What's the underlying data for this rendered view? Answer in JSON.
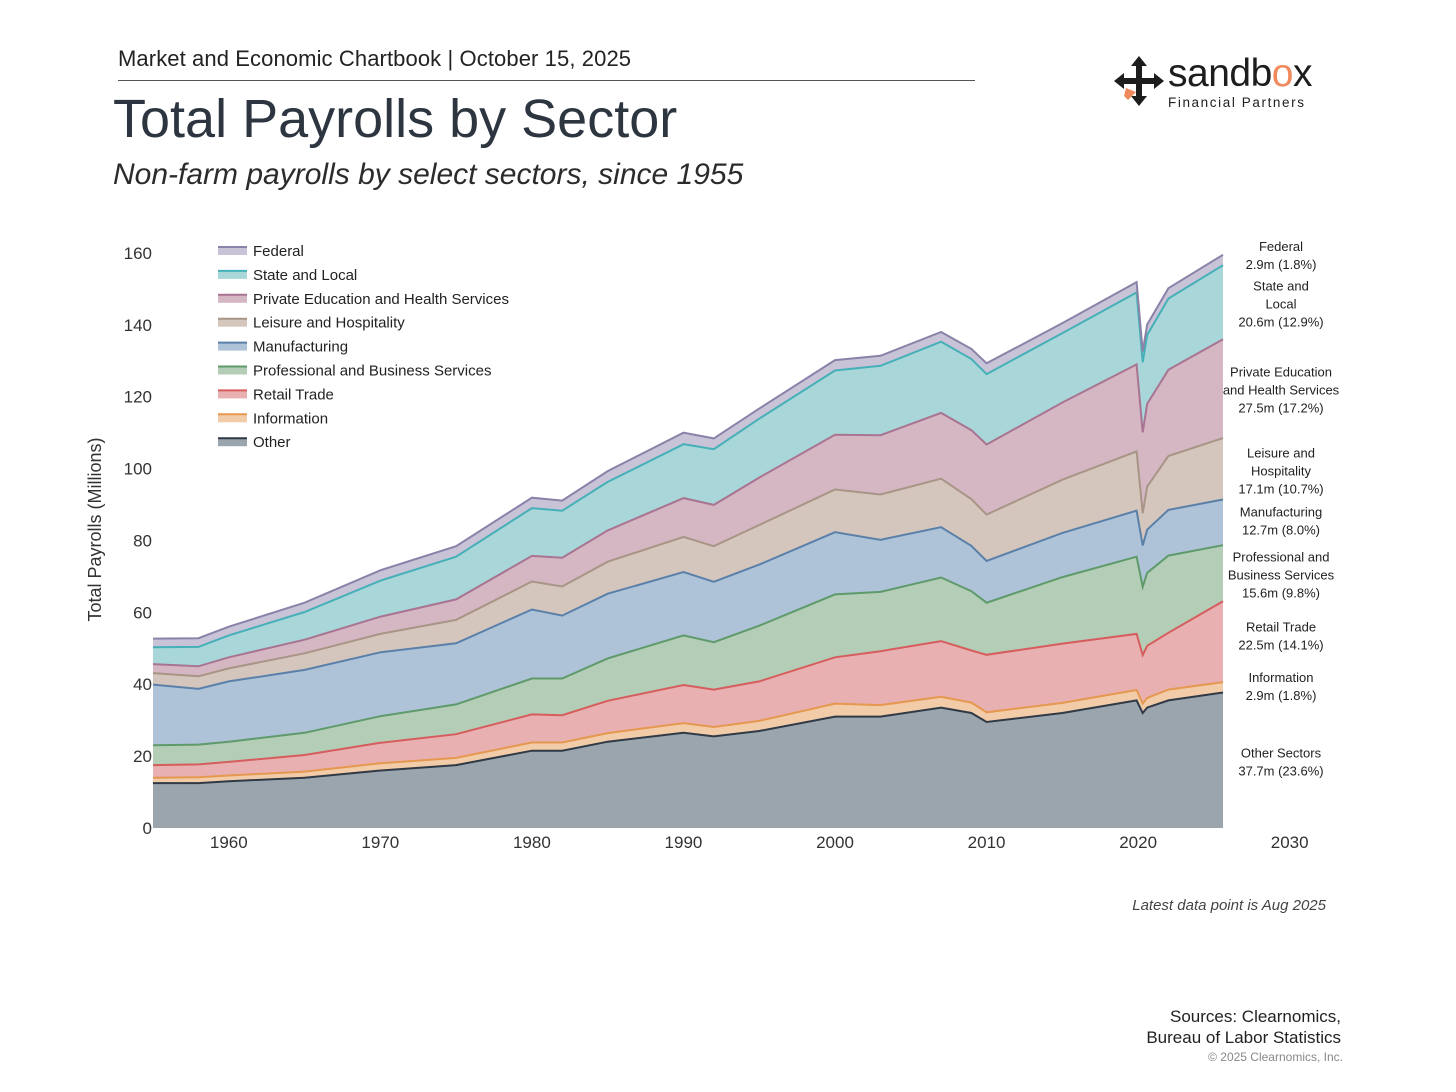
{
  "header": {
    "chartbook": "Market and Economic Chartbook | October 15, 2025",
    "title": "Total Payrolls by Sector",
    "subtitle": "Non-farm payrolls by select sectors, since 1955"
  },
  "logo": {
    "word_main": "sandb",
    "word_accent": "o",
    "word_end": "x",
    "tagline": "Financial Partners"
  },
  "footer": {
    "note": "Latest data point is Aug 2025",
    "sources_line1": "Sources: Clearnomics,",
    "sources_line2": "Bureau of Labor Statistics",
    "copyright": "© 2025 Clearnomics, Inc."
  },
  "colors": {
    "Other": "#9aa5ae",
    "Other_line": "#2f3a46",
    "Information": "#f2cba9",
    "Information_line": "#e5984f",
    "Retail Trade": "#e8b0b0",
    "Retail Trade_line": "#d65d5d",
    "Professional and Business Services": "#b3cdb6",
    "Professional and Business Services_line": "#5e9a6a",
    "Manufacturing": "#aec3d8",
    "Manufacturing_line": "#5a80aa",
    "Leisure and Hospitality": "#d4c6bd",
    "Leisure and Hospitality_line": "#a89585",
    "Private Education and Health Services": "#d4b7c3",
    "Private Education and Health Services_line": "#a87491",
    "State and Local": "#a9d7d9",
    "State and Local_line": "#45b0b7",
    "Federal": "#c9c3d8",
    "Federal_line": "#8a82a8"
  },
  "chart_data": {
    "type": "area",
    "stacked": true,
    "ylabel": "Total Payrolls (Millions)",
    "xlabel": "",
    "xlim": [
      1955,
      2032
    ],
    "ylim": [
      0,
      165
    ],
    "xticks": [
      1960,
      1970,
      1980,
      1990,
      2000,
      2010,
      2020,
      2030
    ],
    "yticks": [
      0,
      20,
      40,
      60,
      80,
      100,
      120,
      140,
      160
    ],
    "legend_placement": "top-left",
    "legend": [
      "Federal",
      "State and Local",
      "Private Education and Health Services",
      "Leisure and Hospitality",
      "Manufacturing",
      "Professional and Business Services",
      "Retail Trade",
      "Information",
      "Other"
    ],
    "x": [
      1955,
      1958,
      1960,
      1965,
      1970,
      1975,
      1980,
      1982,
      1985,
      1990,
      1992,
      1995,
      2000,
      2003,
      2007,
      2009,
      2010,
      2015,
      2019.9,
      2020.3,
      2020.6,
      2022,
      2025.6
    ],
    "series": [
      {
        "name": "Other",
        "values": [
          12.5,
          12.5,
          13.0,
          14.0,
          16.0,
          17.5,
          21.5,
          21.5,
          24.0,
          26.5,
          25.5,
          27.0,
          31.0,
          31.0,
          33.5,
          32.0,
          29.5,
          32.0,
          35.5,
          32.0,
          33.5,
          35.5,
          37.7
        ]
      },
      {
        "name": "Information",
        "values": [
          1.5,
          1.6,
          1.6,
          1.7,
          2.0,
          2.0,
          2.3,
          2.3,
          2.4,
          2.7,
          2.6,
          2.8,
          3.6,
          3.2,
          3.0,
          2.9,
          2.7,
          2.8,
          2.9,
          2.6,
          2.7,
          3.0,
          2.9
        ]
      },
      {
        "name": "Retail Trade",
        "values": [
          3.5,
          3.6,
          3.8,
          4.6,
          5.7,
          6.6,
          7.8,
          7.6,
          9.0,
          10.6,
          10.4,
          11.0,
          12.9,
          15.0,
          15.5,
          14.5,
          16.0,
          16.5,
          15.6,
          13.5,
          14.5,
          15.8,
          22.5
        ]
      },
      {
        "name": "Professional and Business Services",
        "values": [
          5.5,
          5.5,
          5.6,
          6.2,
          7.4,
          8.3,
          10.0,
          10.2,
          11.8,
          13.8,
          13.2,
          15.5,
          17.5,
          16.5,
          17.7,
          16.5,
          14.5,
          18.5,
          21.5,
          19.0,
          20.3,
          21.5,
          15.6
        ]
      },
      {
        "name": "Manufacturing",
        "values": [
          16.9,
          15.5,
          16.8,
          17.5,
          17.8,
          17.0,
          19.2,
          17.5,
          18.0,
          17.6,
          16.8,
          17.0,
          17.3,
          14.5,
          14.0,
          12.6,
          11.6,
          12.3,
          12.8,
          11.5,
          12.0,
          12.7,
          12.7
        ]
      },
      {
        "name": "Leisure and Hospitality",
        "values": [
          3.2,
          3.5,
          3.6,
          4.6,
          5.1,
          6.5,
          7.8,
          8.1,
          8.9,
          9.8,
          9.9,
          11.0,
          11.9,
          12.6,
          13.5,
          13.0,
          12.9,
          14.8,
          16.5,
          9.0,
          12.0,
          15.0,
          17.1
        ]
      },
      {
        "name": "Private Education and Health Services",
        "values": [
          2.5,
          2.8,
          3.1,
          3.8,
          4.8,
          5.7,
          7.1,
          8.0,
          8.7,
          10.8,
          11.5,
          13.2,
          15.2,
          16.5,
          18.3,
          19.2,
          19.5,
          21.5,
          24.2,
          22.5,
          23.0,
          24.0,
          27.5
        ]
      },
      {
        "name": "State and Local",
        "values": [
          4.7,
          5.4,
          6.1,
          7.7,
          10.0,
          11.9,
          13.3,
          13.1,
          13.5,
          15.0,
          15.5,
          16.4,
          17.9,
          19.3,
          19.8,
          19.8,
          19.6,
          19.3,
          20.0,
          19.5,
          19.2,
          19.8,
          20.6
        ]
      },
      {
        "name": "Federal",
        "values": [
          2.4,
          2.4,
          2.4,
          2.6,
          2.9,
          2.9,
          2.9,
          2.8,
          3.0,
          3.2,
          3.0,
          2.8,
          2.9,
          2.8,
          2.7,
          2.8,
          3.0,
          2.8,
          2.9,
          3.0,
          2.9,
          2.9,
          2.9
        ]
      }
    ],
    "right_labels": [
      {
        "lines": [
          "Federal",
          "2.9m (1.8%)"
        ],
        "value": 159.5
      },
      {
        "lines": [
          "State and",
          "Local",
          "20.6m (12.9%)"
        ],
        "value": 146
      },
      {
        "lines": [
          "Private Education",
          "and Health Services",
          "27.5m (17.2%)"
        ],
        "value": 122
      },
      {
        "lines": [
          "Leisure and",
          "Hospitality",
          "17.1m (10.7%)"
        ],
        "value": 99.5
      },
      {
        "lines": [
          "Manufacturing",
          "12.7m (8.0%)"
        ],
        "value": 85.5
      },
      {
        "lines": [
          "Professional and",
          "Business Services",
          "15.6m (9.8%)"
        ],
        "value": 70.5
      },
      {
        "lines": [
          "Retail Trade",
          "22.5m (14.1%)"
        ],
        "value": 53.5
      },
      {
        "lines": [
          "Information",
          "2.9m (1.8%)"
        ],
        "value": 39.5
      },
      {
        "lines": [
          "Other Sectors",
          "37.7m (23.6%)"
        ],
        "value": 18.5
      }
    ]
  }
}
